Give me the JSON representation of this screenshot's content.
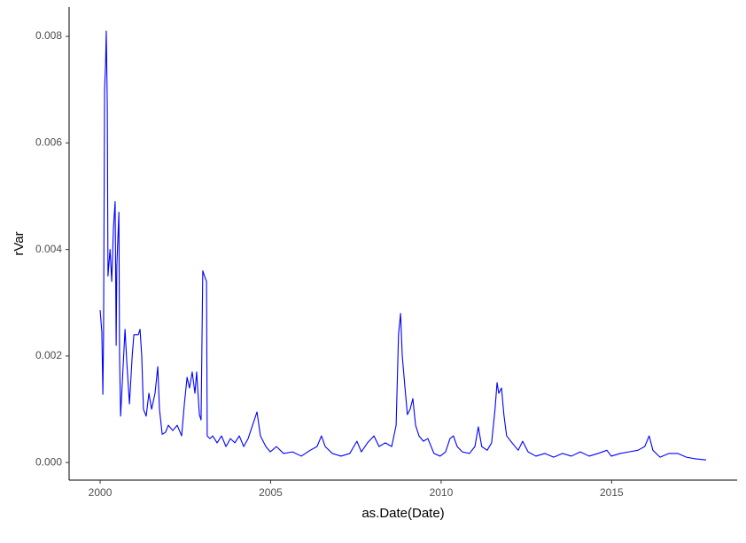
{
  "chart_data": {
    "type": "line",
    "xlabel": "as.Date(Date)",
    "ylabel": "rVar",
    "xlim": [
      1999.09,
      2018.68
    ],
    "ylim": [
      -0.00033,
      0.00855
    ],
    "xticks": [
      2000,
      2005,
      2010,
      2015
    ],
    "yticks": [
      {
        "value": 0,
        "label": "0.000"
      },
      {
        "value": 0.002,
        "label": "0.002"
      },
      {
        "value": 0.004,
        "label": "0.004"
      },
      {
        "value": 0.006,
        "label": "0.006"
      },
      {
        "value": 0.008,
        "label": "0.008"
      }
    ],
    "grid": false,
    "x": [
      2000.0,
      2000.05,
      2000.08,
      2000.1,
      2000.13,
      2000.16,
      2000.18,
      2000.21,
      2000.23,
      2000.29,
      2000.34,
      2000.39,
      2000.44,
      2000.47,
      2000.49,
      2000.55,
      2000.57,
      2000.6,
      2000.65,
      2000.73,
      2000.78,
      2000.86,
      2000.94,
      2000.99,
      2001.04,
      2001.12,
      2001.17,
      2001.22,
      2001.27,
      2001.35,
      2001.43,
      2001.51,
      2001.61,
      2001.69,
      2001.74,
      2001.82,
      2001.92,
      2002.0,
      2002.13,
      2002.26,
      2002.39,
      2002.47,
      2002.55,
      2002.62,
      2002.7,
      2002.78,
      2002.83,
      2002.91,
      2002.96,
      2003.01,
      2003.06,
      2003.12,
      2003.14,
      2003.22,
      2003.3,
      2003.43,
      2003.56,
      2003.69,
      2003.82,
      2003.95,
      2004.08,
      2004.21,
      2004.34,
      2004.47,
      2004.6,
      2004.7,
      2004.86,
      2004.99,
      2005.17,
      2005.38,
      2005.64,
      2005.9,
      2006.16,
      2006.36,
      2006.49,
      2006.6,
      2006.81,
      2007.06,
      2007.32,
      2007.53,
      2007.66,
      2007.84,
      2008.03,
      2008.18,
      2008.36,
      2008.55,
      2008.68,
      2008.75,
      2008.81,
      2008.86,
      2008.94,
      2009.01,
      2009.09,
      2009.17,
      2009.25,
      2009.35,
      2009.48,
      2009.61,
      2009.79,
      2009.97,
      2010.13,
      2010.26,
      2010.36,
      2010.47,
      2010.62,
      2010.83,
      2010.99,
      2011.09,
      2011.19,
      2011.35,
      2011.48,
      2011.58,
      2011.64,
      2011.69,
      2011.77,
      2011.84,
      2011.92,
      2012.08,
      2012.26,
      2012.39,
      2012.55,
      2012.78,
      2013.04,
      2013.3,
      2013.56,
      2013.82,
      2014.08,
      2014.34,
      2014.6,
      2014.86,
      2014.99,
      2015.25,
      2015.51,
      2015.77,
      2015.97,
      2016.1,
      2016.21,
      2016.42,
      2016.68,
      2016.94,
      2017.19,
      2017.45,
      2017.77
    ],
    "series": [
      {
        "name": "rVar",
        "color": "#0000ff",
        "values": [
          0.00286,
          0.00245,
          0.00128,
          0.00236,
          0.007,
          0.0075,
          0.0081,
          0.0067,
          0.0035,
          0.004,
          0.0034,
          0.0044,
          0.0049,
          0.0022,
          0.0037,
          0.0047,
          0.002,
          0.00087,
          0.0015,
          0.0025,
          0.0019,
          0.0011,
          0.002,
          0.0024,
          0.0024,
          0.0024,
          0.0025,
          0.002,
          0.001,
          0.00087,
          0.0013,
          0.001,
          0.0013,
          0.0018,
          0.001,
          0.00053,
          0.00057,
          0.0007,
          0.0006,
          0.0007,
          0.0005,
          0.0011,
          0.0016,
          0.0014,
          0.0017,
          0.0013,
          0.0017,
          0.0009,
          0.0008,
          0.0036,
          0.0035,
          0.0034,
          0.0005,
          0.00045,
          0.0005,
          0.00037,
          0.0005,
          0.0003,
          0.00045,
          0.00037,
          0.0005,
          0.0003,
          0.00045,
          0.0007,
          0.00095,
          0.0005,
          0.0003,
          0.0002,
          0.0003,
          0.00017,
          0.0002,
          0.00012,
          0.00023,
          0.0003,
          0.0005,
          0.0003,
          0.00017,
          0.00012,
          0.00017,
          0.0004,
          0.0002,
          0.00037,
          0.0005,
          0.0003,
          0.00037,
          0.0003,
          0.0007,
          0.0024,
          0.0028,
          0.002,
          0.0014,
          0.0009,
          0.001,
          0.0012,
          0.0007,
          0.0005,
          0.0004,
          0.00045,
          0.00017,
          0.00012,
          0.0002,
          0.00045,
          0.0005,
          0.0003,
          0.0002,
          0.00017,
          0.0003,
          0.00067,
          0.0003,
          0.00023,
          0.00037,
          0.001,
          0.0015,
          0.0013,
          0.0014,
          0.0009,
          0.0005,
          0.00037,
          0.00023,
          0.0004,
          0.0002,
          0.00012,
          0.00017,
          0.0001,
          0.00017,
          0.00012,
          0.0002,
          0.00012,
          0.00017,
          0.00023,
          0.00012,
          0.00017,
          0.0002,
          0.00023,
          0.0003,
          0.0005,
          0.00023,
          0.0001,
          0.00017,
          0.00017,
          0.0001,
          7e-05,
          5e-05
        ]
      }
    ]
  }
}
